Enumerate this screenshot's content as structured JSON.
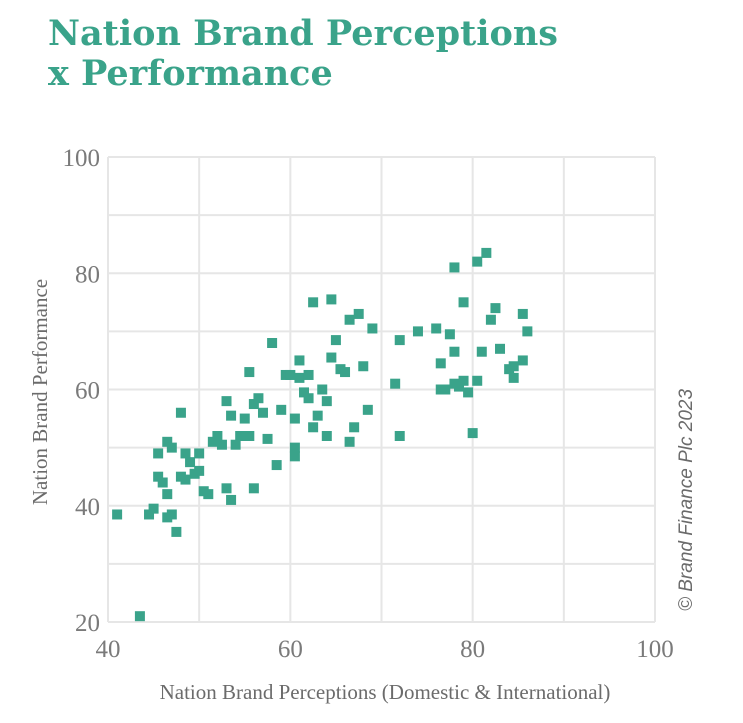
{
  "title_line1": "Nation Brand Perceptions",
  "title_line2": "x Performance",
  "copyright": "© Brand Finance Plc 2023",
  "colors": {
    "accent": "#3aa38a",
    "marker": "#3aa38a",
    "grid": "#e6e6e6"
  },
  "chart_data": {
    "type": "scatter",
    "title": "Nation Brand Perceptions x Performance",
    "xlabel": "Nation Brand Perceptions (Domestic & International)",
    "ylabel": "Nation Brand Performance",
    "xlim": [
      40,
      100
    ],
    "ylim": [
      20,
      100
    ],
    "xticks": [
      40,
      60,
      80,
      100
    ],
    "yticks": [
      20,
      40,
      60,
      80,
      100
    ],
    "grid": true,
    "marker": "square",
    "points": [
      [
        41,
        38.5
      ],
      [
        43.5,
        21
      ],
      [
        44.5,
        38.5
      ],
      [
        45,
        39.5
      ],
      [
        45.5,
        45
      ],
      [
        45.5,
        49
      ],
      [
        46,
        44
      ],
      [
        46.5,
        51
      ],
      [
        46.5,
        42
      ],
      [
        46.5,
        38
      ],
      [
        47,
        38.5
      ],
      [
        47,
        50
      ],
      [
        47.5,
        35.5
      ],
      [
        48,
        45
      ],
      [
        48,
        56
      ],
      [
        48.5,
        49
      ],
      [
        48.5,
        44.5
      ],
      [
        49,
        47.5
      ],
      [
        49.5,
        45.5
      ],
      [
        50,
        49
      ],
      [
        50,
        46
      ],
      [
        50.5,
        42.5
      ],
      [
        51,
        42
      ],
      [
        51.5,
        51
      ],
      [
        52,
        52
      ],
      [
        52.5,
        50.5
      ],
      [
        53,
        58
      ],
      [
        53,
        43
      ],
      [
        53.5,
        41
      ],
      [
        53.5,
        55.5
      ],
      [
        54,
        50.5
      ],
      [
        54.5,
        52
      ],
      [
        55,
        55
      ],
      [
        55.5,
        52
      ],
      [
        55.5,
        63
      ],
      [
        56,
        43
      ],
      [
        56,
        57.5
      ],
      [
        56.5,
        58.5
      ],
      [
        57,
        56
      ],
      [
        57.5,
        51.5
      ],
      [
        58,
        68
      ],
      [
        58.5,
        47
      ],
      [
        59,
        56.5
      ],
      [
        59.5,
        62.5
      ],
      [
        60,
        62.5
      ],
      [
        60.5,
        48.5
      ],
      [
        60.5,
        50
      ],
      [
        60.5,
        55
      ],
      [
        61,
        62
      ],
      [
        61,
        65
      ],
      [
        61.5,
        59.5
      ],
      [
        62,
        62.5
      ],
      [
        62,
        58.5
      ],
      [
        62.5,
        75
      ],
      [
        62.5,
        53.5
      ],
      [
        63,
        55.5
      ],
      [
        63.5,
        60
      ],
      [
        64,
        58
      ],
      [
        64,
        52
      ],
      [
        64.5,
        75.5
      ],
      [
        64.5,
        65.5
      ],
      [
        65,
        68.5
      ],
      [
        65.5,
        63.5
      ],
      [
        66,
        63
      ],
      [
        66.5,
        72
      ],
      [
        66.5,
        51
      ],
      [
        67,
        53.5
      ],
      [
        67.5,
        73
      ],
      [
        68,
        64
      ],
      [
        68.5,
        56.5
      ],
      [
        69,
        70.5
      ],
      [
        71.5,
        61
      ],
      [
        72,
        68.5
      ],
      [
        72,
        52
      ],
      [
        74,
        70
      ],
      [
        76,
        70.5
      ],
      [
        76.5,
        64.5
      ],
      [
        76.5,
        60
      ],
      [
        77,
        60
      ],
      [
        77.5,
        69.5
      ],
      [
        78,
        61
      ],
      [
        78,
        66.5
      ],
      [
        78,
        81
      ],
      [
        78.5,
        60.5
      ],
      [
        79,
        75
      ],
      [
        79,
        61.5
      ],
      [
        79.5,
        59.5
      ],
      [
        80,
        52.5
      ],
      [
        80.5,
        61.5
      ],
      [
        80.5,
        82
      ],
      [
        81,
        66.5
      ],
      [
        81.5,
        83.5
      ],
      [
        82,
        72
      ],
      [
        82.5,
        74
      ],
      [
        83,
        67
      ],
      [
        84,
        63.5
      ],
      [
        84.5,
        62
      ],
      [
        84.5,
        64
      ],
      [
        85.5,
        65
      ],
      [
        85.5,
        73
      ],
      [
        86,
        70
      ]
    ]
  }
}
